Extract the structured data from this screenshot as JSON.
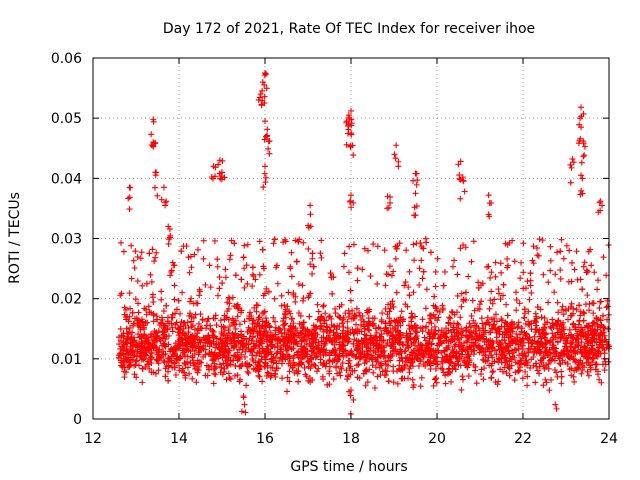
{
  "chart_data": {
    "type": "scatter",
    "title": "Day 172 of 2021, Rate Of TEC Index for receiver ihoe",
    "xlabel": "GPS time / hours",
    "ylabel": "ROTI / TECUs",
    "xlim": [
      12,
      24
    ],
    "ylim": [
      0,
      0.06
    ],
    "x_ticks": [
      "12",
      "14",
      "16",
      "18",
      "20",
      "22",
      "24"
    ],
    "y_ticks": [
      "0",
      "0.01",
      "0.02",
      "0.03",
      "0.04",
      "0.05",
      "0.06"
    ],
    "grid": true,
    "marker": "+",
    "color": "#ff0000",
    "series": [
      {
        "name": "ROTI",
        "notable_points": [
          {
            "x": 12.85,
            "y": 0.0385
          },
          {
            "x": 13.4,
            "y": 0.0498
          },
          {
            "x": 13.4,
            "y": 0.046
          },
          {
            "x": 13.45,
            "y": 0.041
          },
          {
            "x": 13.65,
            "y": 0.0385
          },
          {
            "x": 13.75,
            "y": 0.032
          },
          {
            "x": 14.8,
            "y": 0.042
          },
          {
            "x": 14.95,
            "y": 0.043
          },
          {
            "x": 15.0,
            "y": 0.041
          },
          {
            "x": 15.9,
            "y": 0.054
          },
          {
            "x": 15.95,
            "y": 0.056
          },
          {
            "x": 16.0,
            "y": 0.0575
          },
          {
            "x": 16.0,
            "y": 0.0495
          },
          {
            "x": 16.05,
            "y": 0.047
          },
          {
            "x": 16.0,
            "y": 0.042
          },
          {
            "x": 17.05,
            "y": 0.0355
          },
          {
            "x": 17.9,
            "y": 0.0495
          },
          {
            "x": 17.95,
            "y": 0.0505
          },
          {
            "x": 18.0,
            "y": 0.0512
          },
          {
            "x": 18.0,
            "y": 0.0475
          },
          {
            "x": 18.0,
            "y": 0.0372
          },
          {
            "x": 18.85,
            "y": 0.037
          },
          {
            "x": 19.05,
            "y": 0.0455
          },
          {
            "x": 19.5,
            "y": 0.0408
          },
          {
            "x": 19.5,
            "y": 0.0375
          },
          {
            "x": 20.55,
            "y": 0.0428
          },
          {
            "x": 20.6,
            "y": 0.0402
          },
          {
            "x": 21.2,
            "y": 0.0372
          },
          {
            "x": 23.15,
            "y": 0.0432
          },
          {
            "x": 23.35,
            "y": 0.0518
          },
          {
            "x": 23.35,
            "y": 0.0485
          },
          {
            "x": 23.4,
            "y": 0.0462
          },
          {
            "x": 23.35,
            "y": 0.0405
          },
          {
            "x": 23.8,
            "y": 0.0362
          },
          {
            "x": 22.75,
            "y": 0.0024
          },
          {
            "x": 18.0,
            "y": 0.0048
          },
          {
            "x": 15.5,
            "y": 0.0038
          }
        ],
        "x_range": [
          12.6,
          24.0
        ],
        "dense_band_y": [
          0.004,
          0.02
        ]
      }
    ]
  }
}
